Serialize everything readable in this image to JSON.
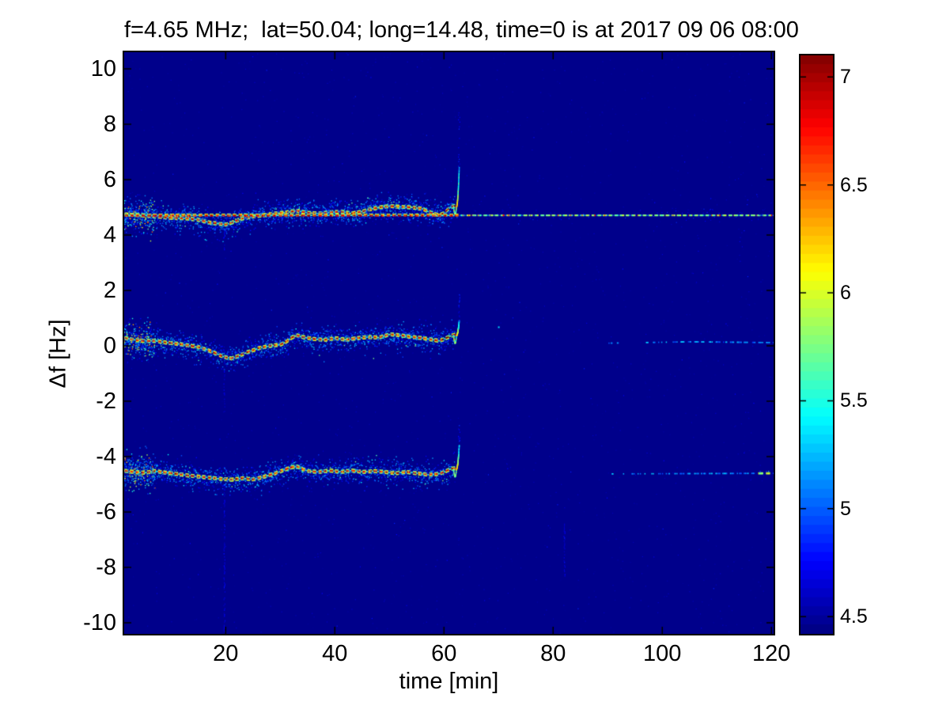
{
  "colors": {
    "figure_background": "#ffffff",
    "text": "#000000",
    "axis": "#000000"
  },
  "chart_data": {
    "type": "heatmap",
    "title": "f=4.65 MHz;  lat=50.04; long=14.48, time=0 is at 2017 09 06 08:00",
    "xlabel": "time [min]",
    "ylabel": "Δf [Hz]",
    "xlim": [
      1.4,
      120.4
    ],
    "ylim": [
      -10.4,
      10.6
    ],
    "xticks": [
      20,
      40,
      60,
      80,
      100,
      120
    ],
    "yticks": [
      10,
      8,
      6,
      4,
      2,
      0,
      -2,
      -4,
      -6,
      -8,
      -10
    ],
    "grid": false,
    "colormap": "jet",
    "background_value": 4.45,
    "colorbar": {
      "position": "right",
      "range": [
        4.42,
        7.1
      ],
      "ticks": [
        4.5,
        5,
        5.5,
        6,
        6.5,
        7
      ],
      "levels": 64
    },
    "carrier_line": {
      "note": "constant dashed spectral line, bright 1-62 min, weaker thin dashes 63-120 min",
      "level": 4.71,
      "time_range": [
        1,
        120.3
      ],
      "fade_after": 62.5,
      "style": "dashed"
    },
    "traces": [
      {
        "name": "upper doppler trace ~+4.7 Hz",
        "time_range": [
          1,
          61.9
        ],
        "points": [
          [
            1,
            4.75
          ],
          [
            4,
            4.72
          ],
          [
            7,
            4.68
          ],
          [
            10,
            4.62
          ],
          [
            13,
            4.6
          ],
          [
            15,
            4.55
          ],
          [
            17,
            4.45
          ],
          [
            19,
            4.4
          ],
          [
            20,
            4.38
          ],
          [
            21,
            4.45
          ],
          [
            23,
            4.6
          ],
          [
            25,
            4.68
          ],
          [
            27,
            4.72
          ],
          [
            29,
            4.78
          ],
          [
            31,
            4.82
          ],
          [
            33,
            4.88
          ],
          [
            35,
            4.8
          ],
          [
            37,
            4.78
          ],
          [
            39,
            4.82
          ],
          [
            41,
            4.85
          ],
          [
            43,
            4.78
          ],
          [
            45,
            4.85
          ],
          [
            46,
            4.92
          ],
          [
            48,
            5.0
          ],
          [
            50,
            5.05
          ],
          [
            52,
            5.02
          ],
          [
            54,
            5.0
          ],
          [
            56,
            4.95
          ],
          [
            57,
            4.85
          ],
          [
            58,
            4.78
          ],
          [
            59,
            4.72
          ],
          [
            60,
            4.8
          ],
          [
            61,
            5.0
          ],
          [
            61.8,
            5.05
          ]
        ],
        "spike": {
          "time": 62.2,
          "peak": 6.5,
          "streak_to": 8.6
        }
      },
      {
        "name": "center doppler trace ~0 Hz",
        "time_range": [
          1,
          61.9
        ],
        "points": [
          [
            1,
            0.3
          ],
          [
            3,
            0.22
          ],
          [
            5,
            0.18
          ],
          [
            7,
            0.18
          ],
          [
            9,
            0.12
          ],
          [
            11,
            0.08
          ],
          [
            13,
            0.02
          ],
          [
            15,
            -0.05
          ],
          [
            17,
            -0.18
          ],
          [
            19,
            -0.35
          ],
          [
            20,
            -0.42
          ],
          [
            21,
            -0.45
          ],
          [
            22,
            -0.38
          ],
          [
            24,
            -0.22
          ],
          [
            26,
            -0.08
          ],
          [
            28,
            0.0
          ],
          [
            30,
            0.05
          ],
          [
            31,
            0.15
          ],
          [
            32,
            0.3
          ],
          [
            33,
            0.38
          ],
          [
            34,
            0.32
          ],
          [
            36,
            0.25
          ],
          [
            38,
            0.22
          ],
          [
            40,
            0.28
          ],
          [
            42,
            0.22
          ],
          [
            44,
            0.28
          ],
          [
            46,
            0.32
          ],
          [
            48,
            0.3
          ],
          [
            50,
            0.42
          ],
          [
            52,
            0.38
          ],
          [
            54,
            0.32
          ],
          [
            56,
            0.28
          ],
          [
            58,
            0.22
          ],
          [
            59,
            0.18
          ],
          [
            60,
            0.25
          ],
          [
            61,
            0.35
          ],
          [
            61.8,
            0.4
          ]
        ],
        "spike": {
          "time": 62.2,
          "peak": 0.95,
          "streak_to": 1.9
        },
        "faint_segment": {
          "time_range": [
            90,
            120.3
          ],
          "points": [
            [
              90,
              0.1
            ],
            [
              105,
              0.15
            ],
            [
              120,
              0.12
            ]
          ]
        }
      },
      {
        "name": "lower doppler trace ~-4.6 Hz",
        "time_range": [
          1,
          61.9
        ],
        "points": [
          [
            1,
            -4.5
          ],
          [
            3,
            -4.55
          ],
          [
            5,
            -4.58
          ],
          [
            7,
            -4.52
          ],
          [
            9,
            -4.58
          ],
          [
            11,
            -4.62
          ],
          [
            13,
            -4.68
          ],
          [
            15,
            -4.72
          ],
          [
            17,
            -4.76
          ],
          [
            19,
            -4.8
          ],
          [
            21,
            -4.83
          ],
          [
            23,
            -4.78
          ],
          [
            25,
            -4.82
          ],
          [
            27,
            -4.72
          ],
          [
            29,
            -4.6
          ],
          [
            31,
            -4.45
          ],
          [
            32,
            -4.38
          ],
          [
            33,
            -4.35
          ],
          [
            34,
            -4.45
          ],
          [
            35,
            -4.52
          ],
          [
            37,
            -4.55
          ],
          [
            39,
            -4.5
          ],
          [
            41,
            -4.55
          ],
          [
            43,
            -4.5
          ],
          [
            45,
            -4.55
          ],
          [
            47,
            -4.52
          ],
          [
            49,
            -4.55
          ],
          [
            51,
            -4.6
          ],
          [
            53,
            -4.55
          ],
          [
            55,
            -4.6
          ],
          [
            57,
            -4.65
          ],
          [
            59,
            -4.62
          ],
          [
            60,
            -4.55
          ],
          [
            61,
            -4.45
          ],
          [
            61.8,
            -4.42
          ]
        ],
        "spike": {
          "time": 62.2,
          "peak": -3.55,
          "streak_to": -2.8
        },
        "faint_segment": {
          "time_range": [
            90,
            120.3
          ],
          "points": [
            [
              90,
              -4.62
            ],
            [
              120,
              -4.6
            ]
          ],
          "bright_blob": [
            117,
            119.6
          ]
        }
      }
    ],
    "artifacts": [
      {
        "type": "vertical-streak",
        "time": 19.7,
        "from": -4.95,
        "to": -10.4
      },
      {
        "type": "vertical-streak",
        "time": 19.7,
        "from": -0.55,
        "to": -2.4
      },
      {
        "type": "vertical-streak",
        "time": 19.7,
        "from": 4.3,
        "to": 3.5
      },
      {
        "type": "vertical-streak",
        "time": 82.0,
        "from": -6.3,
        "to": -8.4
      },
      {
        "type": "dot",
        "time": 69.9,
        "df": 0.7
      }
    ]
  }
}
